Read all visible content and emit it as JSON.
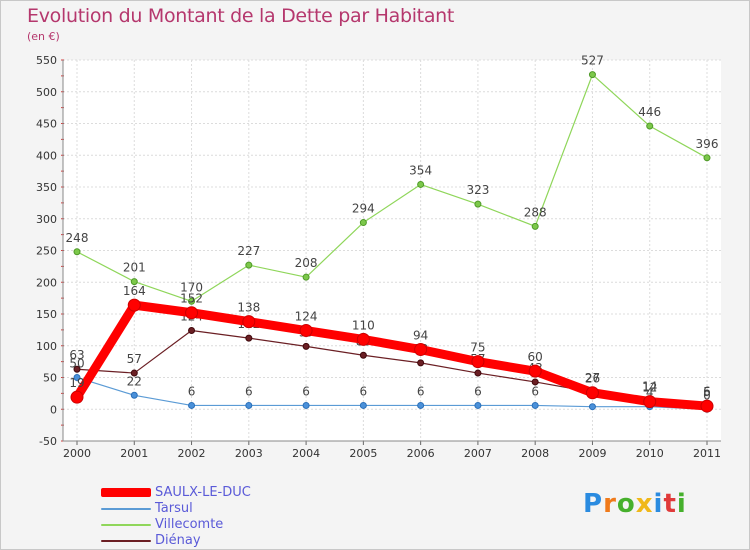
{
  "title": "Evolution du Montant de la Dette par Habitant",
  "subtitle": "(en €)",
  "logo": {
    "text": "Proxiti",
    "letters": [
      {
        "ch": "P",
        "color": "#2a8be0"
      },
      {
        "ch": "r",
        "color": "#f07a1a"
      },
      {
        "ch": "o",
        "color": "#46b02c"
      },
      {
        "ch": "x",
        "color": "#f0b81a"
      },
      {
        "ch": "i",
        "color": "#2a8be0"
      },
      {
        "ch": "t",
        "color": "#e03a3a"
      },
      {
        "ch": "i",
        "color": "#46b02c"
      }
    ]
  },
  "chart_data": {
    "type": "line",
    "title": "Evolution du Montant de la Dette par Habitant",
    "ylabel": "(en €)",
    "xlabel": "",
    "x": [
      "2000",
      "2001",
      "2002",
      "2003",
      "2004",
      "2005",
      "2006",
      "2007",
      "2008",
      "2009",
      "2010",
      "2011"
    ],
    "ylim": [
      -50,
      550
    ],
    "yticks": [
      -50,
      0,
      50,
      100,
      150,
      200,
      250,
      300,
      350,
      400,
      450,
      500,
      550
    ],
    "grid": true,
    "legend_position": "bottom-left",
    "series": [
      {
        "name": "Villecomte",
        "color": "#8fd65a",
        "values": [
          248,
          201,
          170,
          227,
          208,
          294,
          354,
          323,
          288,
          527,
          446,
          396
        ]
      },
      {
        "name": "Diénay",
        "color": "#6b1f24",
        "values": [
          63,
          57,
          124,
          112,
          99,
          85,
          73,
          57,
          43,
          27,
          14,
          6
        ]
      },
      {
        "name": "Tarsul",
        "color": "#5b9bd5",
        "values": [
          50,
          22,
          6,
          6,
          6,
          6,
          6,
          6,
          6,
          4,
          4,
          0
        ]
      },
      {
        "name": "SAULX-LE-DUC",
        "color": "#ff0000",
        "values": [
          19,
          164,
          152,
          138,
          124,
          110,
          94,
          75,
          60,
          26,
          12,
          5
        ]
      }
    ]
  }
}
